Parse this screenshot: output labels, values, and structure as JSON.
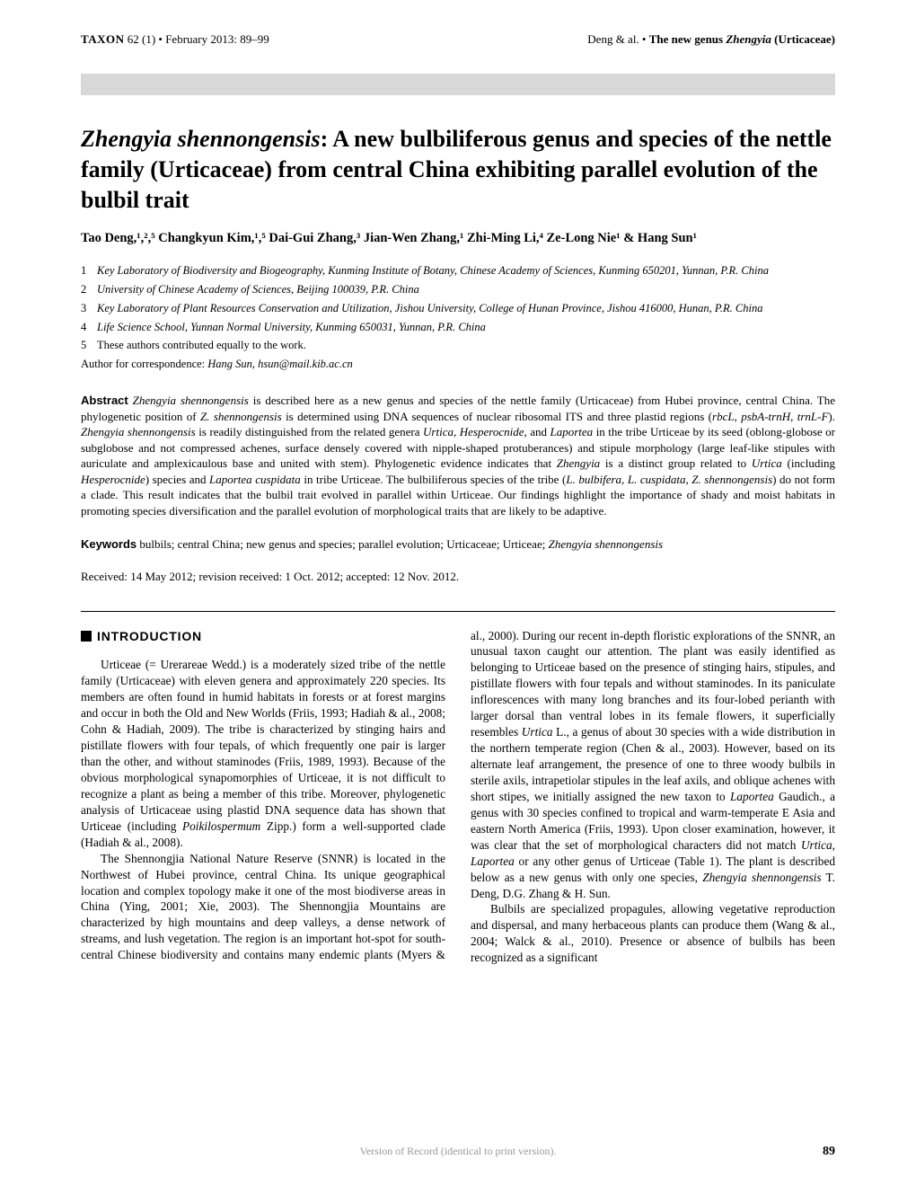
{
  "header": {
    "journal": "TAXON",
    "issue": "62 (1) • February 2013: 89–99",
    "authors_short": "Deng & al. •",
    "paper_short": "The new genus",
    "genus_short": "Zhengyia",
    "family_short": "(Urticaceae)"
  },
  "title": {
    "genus_species": "Zhengyia shennongensis",
    "rest": ": A new bulbiliferous genus and species of the nettle family (Urticaceae) from central China exhibiting parallel evolution of the bulbil trait"
  },
  "authors": "Tao Deng,¹,²,⁵ Changkyun Kim,¹,⁵ Dai-Gui Zhang,³ Jian-Wen Zhang,¹ Zhi-Ming Li,⁴ Ze-Long Nie¹ & Hang Sun¹",
  "affiliations": [
    {
      "num": "1",
      "text": "Key Laboratory of Biodiversity and Biogeography, Kunming Institute of Botany, Chinese Academy of Sciences, Kunming 650201, Yunnan, P.R. China"
    },
    {
      "num": "2",
      "text": "University of Chinese Academy of Sciences, Beijing 100039, P.R. China"
    },
    {
      "num": "3",
      "text": "Key Laboratory of Plant Resources Conservation and Utilization, Jishou University, College of Hunan Province, Jishou 416000, Hunan, P.R. China"
    },
    {
      "num": "4",
      "text": "Life Science School, Yunnan Normal University, Kunming 650031, Yunnan, P.R. China"
    },
    {
      "num": "5",
      "text": "These authors contributed equally to the work.",
      "no_italic": true
    }
  ],
  "correspondence": {
    "label": "Author for correspondence: ",
    "name": "Hang Sun, hsun@mail.kib.ac.cn"
  },
  "abstract": {
    "label": "Abstract",
    "p1a": "Zhengyia shennongensis",
    "p1b": " is described here as a new genus and species of the nettle family (Urticaceae) from Hubei province, central China. The phylogenetic position of ",
    "p1c": "Z. shennongensis",
    "p1d": " is determined using DNA sequences of nuclear ribosomal ITS and three plastid regions (",
    "p1e": "rbcL",
    "p1f": ", ",
    "p1g": "psbA-trnH",
    "p1h": ", ",
    "p1i": "trnL-F",
    "p1j": "). ",
    "p1k": "Zhengyia shennongensis",
    "p1l": " is readily distinguished from the related genera ",
    "p1m": "Urtica",
    "p1n": ", ",
    "p1o": "Hesperocnide",
    "p1p": ", and ",
    "p1q": "Laportea",
    "p1r": " in the tribe Urticeae by its seed (oblong-globose or subglobose and not compressed achenes, surface densely covered with nipple-shaped protuberances) and stipule morphology (large leaf-like stipules with auriculate and amplexicaulous base and united with stem). Phylogenetic evidence indicates that ",
    "p1s": "Zhengyia",
    "p1t": " is a distinct group related to ",
    "p1u": "Urtica",
    "p1v": " (including ",
    "p1w": "Hesperocnide",
    "p1x": ") species and ",
    "p1y": "Laportea cuspidata",
    "p1z": " in tribe Urticeae. The bulbiliferous species of the tribe (",
    "p1za": "L. bulbifera",
    "p1zb": ", ",
    "p1zc": "L. cuspidata",
    "p1zd": ", ",
    "p1ze": "Z. shennongensis",
    "p1zf": ") do not form a clade. This result indicates that the bulbil trait evolved in parallel within Urticeae. Our findings highlight the importance of shady and moist habitats in promoting species diversification and the parallel evolution of morphological traits that are likely to be adaptive."
  },
  "keywords": {
    "label": "Keywords",
    "text_a": "bulbils; central China; new genus and species; parallel evolution; Urticaceae; Urticeae; ",
    "text_b": "Zhengyia shennongensis"
  },
  "dates": "Received: 14 May 2012; revision received: 1 Oct. 2012; accepted: 12 Nov. 2012.",
  "section_heading": "INTRODUCTION",
  "body": {
    "col": "Urticeae (= Urerareae Wedd.) is a moderately sized tribe of the nettle family (Urticaceae) with eleven genera and approximately 220 species. Its members are often found in humid habitats in forests or at forest margins and occur in both the Old and New Worlds (Friis, 1993; Hadiah & al., 2008; Cohn & Hadiah, 2009). The tribe is characterized by stinging hairs and pistillate flowers with four tepals, of which frequently one pair is larger than the other, and without staminodes (Friis, 1989, 1993). Because of the obvious morphological synapomorphies of Urticeae, it is not difficult to recognize a plant as being a member of this tribe. Moreover, phylogenetic analysis of Urticaceae using plastid DNA sequence data has shown that Urticeae (including ",
    "col_i1": "Poikilospermum",
    "col_2": " Zipp.) form a well-supported clade (Hadiah & al., 2008).",
    "p2": "The Shennongjia National Nature Reserve (SNNR) is located in the Northwest of Hubei province, central China. Its unique geographical location and complex topology make it one of the most biodiverse areas in China (Ying, 2001; Xie, 2003). The Shennongjia Mountains are characterized by high mountains and deep valleys, a dense network of streams, and lush vegetation. The region is an important hot-spot for south-central Chinese biodiversity and contains many endemic plants (Myers & al., 2000). During our recent in-depth floristic explorations of the SNNR, an unusual taxon caught our attention. The plant was easily identified as belonging to Urticeae based on the presence of stinging hairs, stipules, and pistillate flowers with four tepals and without staminodes. In its paniculate inflorescences with many long branches and its four-lobed perianth with larger dorsal than ventral lobes in its female flowers, it superficially resembles ",
    "p2_i1": "Urtica",
    "p2_3": " L., a genus of about 30 species with a wide distribution in the northern temperate region (Chen & al., 2003). However, based on its alternate leaf arrangement, the presence of one to three woody bulbils in sterile axils, intrapetiolar stipules in the leaf axils, and oblique achenes with short stipes, we initially assigned the new taxon to ",
    "p2_i2": "Laportea",
    "p2_4": " Gaudich., a genus with 30 species confined to tropical and warm-temperate E Asia and eastern North America (Friis, 1993). Upon closer examination, however, it was clear that the set of morphological characters did not match ",
    "p2_i3": "Urtica",
    "p2_5": ", ",
    "p2_i4": "Laportea",
    "p2_6": " or any other genus of Urticeae (Table 1). The plant is described below as a new genus with only one species, ",
    "p2_i5": "Zhengyia shennongensis",
    "p2_7": " T. Deng, D.G. Zhang & H. Sun.",
    "p3": "Bulbils are specialized propagules, allowing vegetative reproduction and dispersal, and many herbaceous plants can produce them (Wang & al., 2004; Walck & al., 2010). Presence or absence of bulbils has been recognized as a significant"
  },
  "footer": {
    "center": "Version of Record (identical to print version).",
    "page": "89"
  }
}
